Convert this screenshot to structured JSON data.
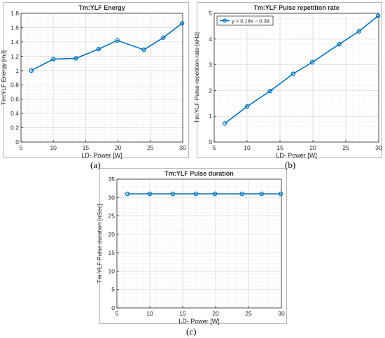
{
  "chart_data": [
    {
      "id": "a",
      "type": "line",
      "title": "Tm:YLF Energy",
      "xlabel": "LD- Power [W]",
      "ylabel": "Tm:YLF Energy [mJ]",
      "xlim": [
        5,
        30
      ],
      "ylim": [
        0,
        1.8
      ],
      "xticks": [
        5,
        10,
        15,
        20,
        25,
        30
      ],
      "yticks": [
        0,
        0.2,
        0.4,
        0.6,
        0.8,
        1,
        1.2,
        1.4,
        1.6,
        1.8
      ],
      "grid": true,
      "series": [
        {
          "x": [
            6.6,
            10,
            13.5,
            17,
            19.9,
            24,
            27,
            29.9
          ],
          "y": [
            1.0,
            1.16,
            1.17,
            1.3,
            1.42,
            1.29,
            1.46,
            1.66
          ]
        }
      ],
      "legend": null
    },
    {
      "id": "b",
      "type": "line",
      "title": "Tm:YLF Pulse repetition rate",
      "xlabel": "LD- Power [W]",
      "ylabel": "Tm:YLF Pulse repetition rate [kHz]",
      "xlim": [
        5,
        30
      ],
      "ylim": [
        0,
        5
      ],
      "xticks": [
        5,
        10,
        15,
        20,
        25,
        30
      ],
      "yticks": [
        0,
        1,
        2,
        3,
        4,
        5
      ],
      "grid": true,
      "series": [
        {
          "name": "y = 0.18x − 0.39",
          "x": [
            6.6,
            10,
            13.5,
            17,
            19.9,
            24,
            27,
            29.9
          ],
          "y": [
            0.72,
            1.38,
            1.98,
            2.65,
            3.1,
            3.8,
            4.3,
            4.9
          ]
        }
      ],
      "legend": "top-left"
    },
    {
      "id": "c",
      "type": "line",
      "title": "Tm:YLF Pulse duration",
      "xlabel": "LD- Power [W]",
      "ylabel": "Tm:YLF Pulse duration [nSec]",
      "xlim": [
        5,
        30
      ],
      "ylim": [
        0,
        35
      ],
      "xticks": [
        5,
        10,
        15,
        20,
        25,
        30
      ],
      "yticks": [
        0,
        5,
        10,
        15,
        20,
        25,
        30,
        35
      ],
      "grid": true,
      "series": [
        {
          "x": [
            6.6,
            10,
            13.5,
            17,
            19.9,
            24,
            27,
            29.9
          ],
          "y": [
            31,
            31,
            31,
            31,
            31,
            31,
            31,
            31
          ]
        }
      ],
      "legend": null
    }
  ],
  "panel_labels": {
    "a": "(a)",
    "b": "(b)",
    "c": "(c)"
  },
  "colors": {
    "series": "#0072bd",
    "grid": "#e6e6e6",
    "axis": "#262626"
  }
}
